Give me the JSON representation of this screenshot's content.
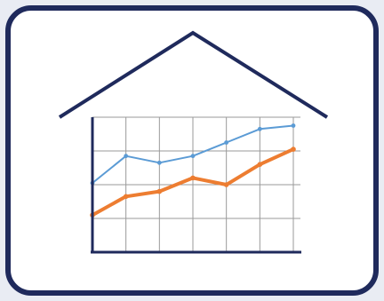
{
  "colors": {
    "background": "#e9ecf3",
    "card_fill": "#ffffff",
    "card_border": "#1f2a5c",
    "roof": "#1f2a5c",
    "axes": "#1f2a5c",
    "grid": "#9a9a9a",
    "series_blue": "#5b9bd5",
    "series_orange": "#ed7d31"
  },
  "icon": "house-with-rising-line-chart-icon",
  "chart_data": {
    "type": "line",
    "title": "",
    "xlabel": "",
    "ylabel": "",
    "x": [
      0,
      1,
      2,
      3,
      4,
      5,
      6
    ],
    "ylim": [
      0,
      4
    ],
    "grid": true,
    "series": [
      {
        "color": "#5b9bd5",
        "values": [
          2.05,
          2.85,
          2.65,
          2.85,
          3.25,
          3.65,
          3.75
        ]
      },
      {
        "color": "#ed7d31",
        "values": [
          1.1,
          1.65,
          1.8,
          2.2,
          2.0,
          2.6,
          3.05
        ]
      }
    ]
  }
}
